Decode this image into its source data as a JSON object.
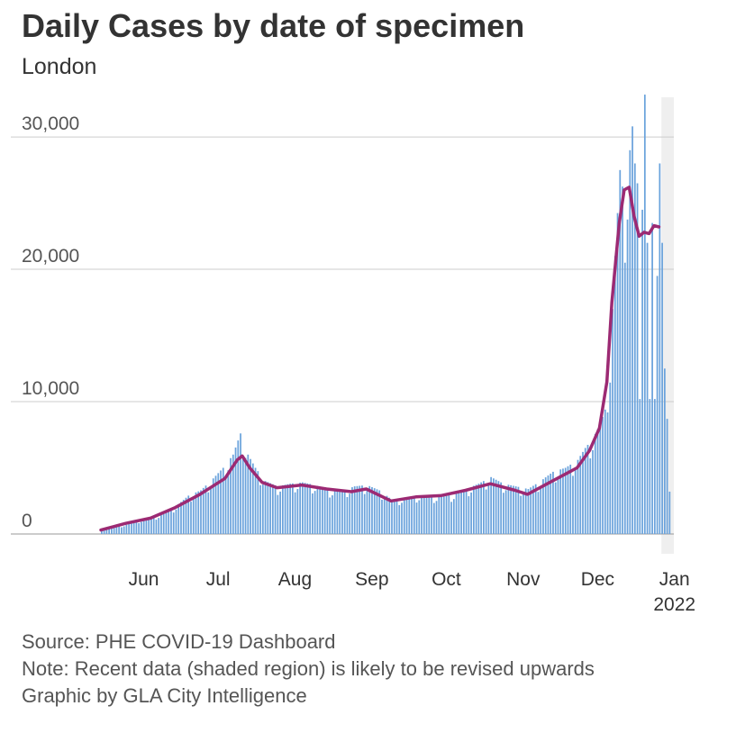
{
  "title": "Daily Cases by date of specimen",
  "subtitle": "London",
  "footer": {
    "source": "Source: PHE COVID-19 Dashboard",
    "note": "Note: Recent data (shaded region) is likely to be revised upwards",
    "credit": "Graphic by GLA City Intelligence"
  },
  "colors": {
    "bars": "#6ba3dc",
    "average": "#9c2a73",
    "shade": "#efefef",
    "grid": "#cccccc"
  },
  "chart_data": {
    "type": "bar",
    "x_start": "2021-05-22",
    "x_end": "2022-01-08",
    "shaded_from": "2022-01-03",
    "ylim": [
      0,
      33000
    ],
    "y_ticks": [
      {
        "value": 0,
        "label": "0"
      },
      {
        "value": 10000,
        "label": "10,000"
      },
      {
        "value": 20000,
        "label": "20,000"
      },
      {
        "value": 30000,
        "label": "30,000"
      }
    ],
    "x_ticks": [
      {
        "date": "2021-06-01",
        "label": "Jun"
      },
      {
        "date": "2021-07-01",
        "label": "Jul"
      },
      {
        "date": "2021-08-01",
        "label": "Aug"
      },
      {
        "date": "2021-09-01",
        "label": "Sep"
      },
      {
        "date": "2021-10-01",
        "label": "Oct"
      },
      {
        "date": "2021-11-01",
        "label": "Nov"
      },
      {
        "date": "2021-12-01",
        "label": "Dec"
      },
      {
        "date": "2022-01-01",
        "label": "Jan",
        "year": "2022"
      }
    ],
    "series": [
      {
        "type": "bar",
        "points": [
          [
            "2021-05-22",
            300
          ],
          [
            "2021-05-27",
            500
          ],
          [
            "2021-06-01",
            700
          ],
          [
            "2021-06-06",
            1000
          ],
          [
            "2021-06-11",
            1200
          ],
          [
            "2021-06-16",
            1500
          ],
          [
            "2021-06-21",
            2100
          ],
          [
            "2021-06-26",
            2900
          ],
          [
            "2021-07-01",
            3300
          ],
          [
            "2021-07-06",
            4200
          ],
          [
            "2021-07-11",
            5200
          ],
          [
            "2021-07-14",
            6000
          ],
          [
            "2021-07-17",
            7600
          ],
          [
            "2021-07-20",
            6000
          ],
          [
            "2021-07-23",
            5000
          ],
          [
            "2021-07-27",
            4000
          ],
          [
            "2021-08-01",
            3600
          ],
          [
            "2021-08-06",
            3800
          ],
          [
            "2021-08-11",
            3900
          ],
          [
            "2021-08-16",
            3700
          ],
          [
            "2021-08-21",
            3400
          ],
          [
            "2021-08-26",
            3200
          ],
          [
            "2021-09-01",
            3600
          ],
          [
            "2021-09-06",
            3700
          ],
          [
            "2021-09-11",
            3300
          ],
          [
            "2021-09-16",
            2600
          ],
          [
            "2021-09-21",
            2700
          ],
          [
            "2021-09-26",
            2900
          ],
          [
            "2021-10-01",
            2900
          ],
          [
            "2021-10-06",
            2800
          ],
          [
            "2021-10-11",
            3000
          ],
          [
            "2021-10-16",
            3400
          ],
          [
            "2021-10-21",
            3800
          ],
          [
            "2021-10-26",
            4300
          ],
          [
            "2021-10-31",
            3800
          ],
          [
            "2021-11-05",
            3600
          ],
          [
            "2021-11-10",
            3400
          ],
          [
            "2021-11-15",
            4000
          ],
          [
            "2021-11-20",
            4700
          ],
          [
            "2021-11-25",
            5000
          ],
          [
            "2021-11-30",
            5600
          ],
          [
            "2021-12-03",
            6500
          ],
          [
            "2021-12-06",
            7200
          ],
          [
            "2021-12-09",
            8300
          ],
          [
            "2021-12-11",
            9400
          ],
          [
            "2021-12-13",
            13000
          ],
          [
            "2021-12-15",
            21000
          ],
          [
            "2021-12-17",
            27500
          ],
          [
            "2021-12-19",
            25000
          ],
          [
            "2021-12-21",
            29000
          ],
          [
            "2021-12-22",
            30800
          ],
          [
            "2021-12-23",
            28000
          ],
          [
            "2021-12-24",
            26500
          ],
          [
            "2021-12-25",
            10200
          ],
          [
            "2021-12-26",
            24500
          ],
          [
            "2021-12-27",
            33200
          ],
          [
            "2021-12-28",
            22000
          ],
          [
            "2021-12-29",
            10200
          ],
          [
            "2021-12-30",
            23500
          ],
          [
            "2021-12-31",
            10200
          ],
          [
            "2022-01-01",
            19500
          ],
          [
            "2022-01-02",
            28000
          ],
          [
            "2022-01-03",
            22000
          ],
          [
            "2022-01-04",
            12500
          ],
          [
            "2022-01-05",
            8700
          ],
          [
            "2022-01-06",
            3200
          ]
        ]
      },
      {
        "type": "line",
        "points": [
          [
            "2021-05-22",
            300
          ],
          [
            "2021-06-01",
            800
          ],
          [
            "2021-06-11",
            1200
          ],
          [
            "2021-06-21",
            2000
          ],
          [
            "2021-07-01",
            3000
          ],
          [
            "2021-07-11",
            4200
          ],
          [
            "2021-07-16",
            5600
          ],
          [
            "2021-07-18",
            5900
          ],
          [
            "2021-07-21",
            5000
          ],
          [
            "2021-07-26",
            3900
          ],
          [
            "2021-08-01",
            3500
          ],
          [
            "2021-08-11",
            3700
          ],
          [
            "2021-08-21",
            3400
          ],
          [
            "2021-08-31",
            3200
          ],
          [
            "2021-09-06",
            3400
          ],
          [
            "2021-09-16",
            2500
          ],
          [
            "2021-09-26",
            2800
          ],
          [
            "2021-10-06",
            2900
          ],
          [
            "2021-10-16",
            3300
          ],
          [
            "2021-10-26",
            3800
          ],
          [
            "2021-11-05",
            3300
          ],
          [
            "2021-11-10",
            3000
          ],
          [
            "2021-11-20",
            4000
          ],
          [
            "2021-11-30",
            5000
          ],
          [
            "2021-12-05",
            6300
          ],
          [
            "2021-12-09",
            8000
          ],
          [
            "2021-12-12",
            11500
          ],
          [
            "2021-12-14",
            17500
          ],
          [
            "2021-12-17",
            23500
          ],
          [
            "2021-12-19",
            26000
          ],
          [
            "2021-12-21",
            26200
          ],
          [
            "2021-12-23",
            24000
          ],
          [
            "2021-12-25",
            22500
          ],
          [
            "2021-12-27",
            22800
          ],
          [
            "2021-12-29",
            22700
          ],
          [
            "2021-12-31",
            23300
          ],
          [
            "2022-01-02",
            23200
          ]
        ]
      }
    ]
  }
}
